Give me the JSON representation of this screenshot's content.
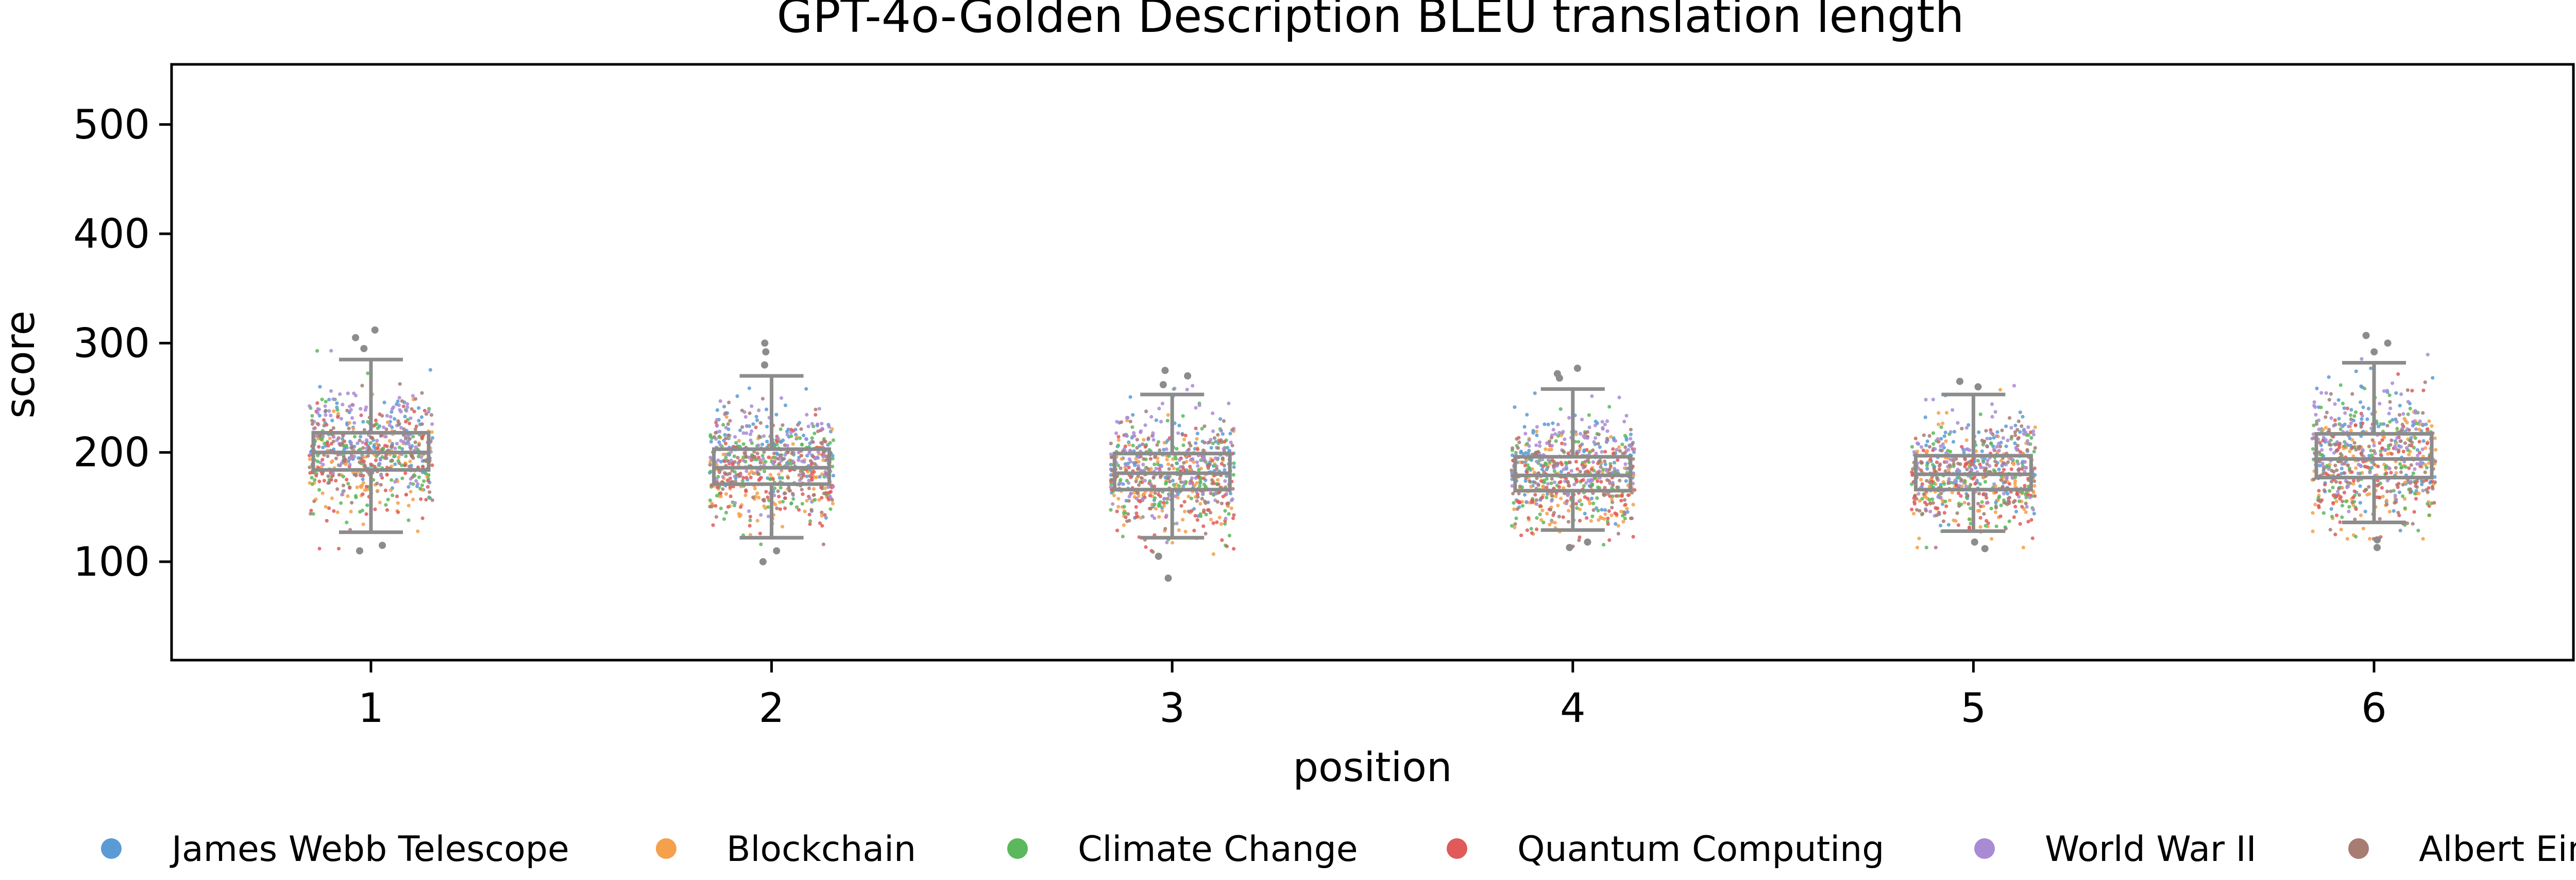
{
  "chart_data": {
    "type": "scatter",
    "subtype": "strip plot with box plots",
    "title": "GPT-4o-Golden Description BLEU translation length",
    "xlabel": "position",
    "ylabel": "score",
    "x_categories": [
      "1",
      "2",
      "3",
      "4",
      "5",
      "6"
    ],
    "ylim": [
      10,
      555
    ],
    "y_ticks": [
      100,
      200,
      300,
      400,
      500
    ],
    "grid": false,
    "legend_position": "bottom",
    "series": [
      {
        "name": "James Webb Telescope",
        "color": "#5b9bd5",
        "center_shift": 8
      },
      {
        "name": "Blockchain",
        "color": "#f5a04a",
        "center_shift": -12
      },
      {
        "name": "Climate Change",
        "color": "#5cb85c",
        "center_shift": -4
      },
      {
        "name": "Quantum Computing",
        "color": "#e05a5a",
        "center_shift": -8
      },
      {
        "name": "World War II",
        "color": "#a98bd4",
        "center_shift": 12
      },
      {
        "name": "Albert Einstein",
        "color": "#a67c73",
        "center_shift": 0
      }
    ],
    "boxes": [
      {
        "position": "1",
        "whisker_low": 127,
        "q1": 184,
        "median": 200,
        "q3": 218,
        "whisker_high": 285,
        "outliers": [
          110,
          115,
          295,
          305,
          312
        ]
      },
      {
        "position": "2",
        "whisker_low": 122,
        "q1": 171,
        "median": 186,
        "q3": 203,
        "whisker_high": 270,
        "outliers": [
          100,
          110,
          280,
          292,
          300
        ]
      },
      {
        "position": "3",
        "whisker_low": 122,
        "q1": 166,
        "median": 181,
        "q3": 199,
        "whisker_high": 253,
        "outliers": [
          85,
          105,
          262,
          270,
          275
        ]
      },
      {
        "position": "4",
        "whisker_low": 129,
        "q1": 165,
        "median": 179,
        "q3": 196,
        "whisker_high": 258,
        "outliers": [
          113,
          118,
          268,
          272,
          277
        ]
      },
      {
        "position": "5",
        "whisker_low": 128,
        "q1": 166,
        "median": 180,
        "q3": 197,
        "whisker_high": 253,
        "outliers": [
          112,
          118,
          260,
          265
        ]
      },
      {
        "position": "6",
        "whisker_low": 136,
        "q1": 177,
        "median": 194,
        "q3": 217,
        "whisker_high": 282,
        "outliers": [
          113,
          120,
          292,
          300,
          307
        ]
      }
    ]
  }
}
